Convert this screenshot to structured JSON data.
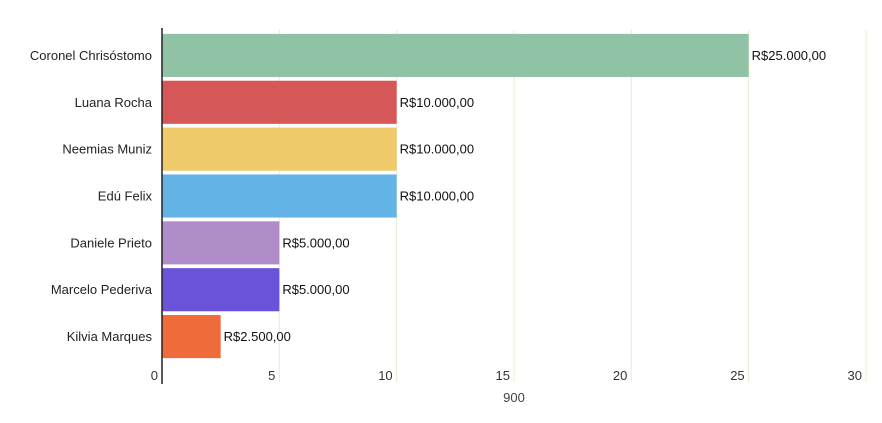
{
  "chart_data": {
    "type": "bar",
    "orientation": "horizontal",
    "categories": [
      "Coronel Chrisóstomo",
      "Luana Rocha",
      "Neemias Muniz",
      "Edú Felix",
      "Daniele Prieto",
      "Marcelo Pederiva",
      "Kilvia Marques"
    ],
    "values": [
      25,
      10,
      10,
      10,
      5,
      5,
      2.5
    ],
    "value_labels": [
      "R$25.000,00",
      "R$10.000,00",
      "R$10.000,00",
      "R$10.000,00",
      "R$5.000,00",
      "R$5.000,00",
      "R$2.500,00"
    ],
    "colors": [
      "#90c2a6",
      "#d65757",
      "#efca6b",
      "#63b3e6",
      "#b08dc9",
      "#6a52d9",
      "#f06b3a"
    ],
    "xlabel": "900",
    "xlim": [
      0,
      30
    ],
    "xticks": [
      "0",
      "5",
      "10",
      "15",
      "20",
      "25",
      "30"
    ],
    "grid": true,
    "grid_color": "#e9edcf"
  }
}
